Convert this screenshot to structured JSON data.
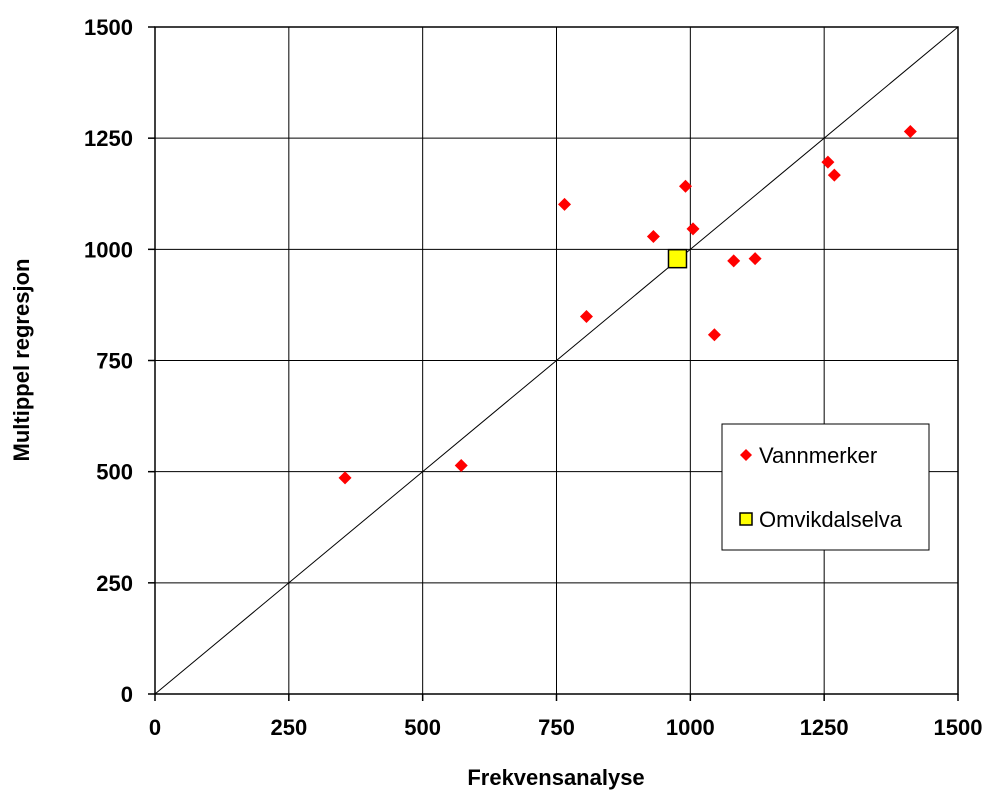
{
  "chart_data": {
    "type": "scatter",
    "xlabel": "Frekvensanalyse",
    "ylabel": "Multippel regresjon",
    "xlim": [
      0,
      1500
    ],
    "ylim": [
      0,
      1500
    ],
    "xticks": [
      "0",
      "250",
      "500",
      "750",
      "1000",
      "1250",
      "1500"
    ],
    "yticks": [
      "0",
      "250",
      "500",
      "750",
      "1000",
      "1250",
      "1500"
    ],
    "grid": true,
    "reference_line": {
      "from": [
        0,
        0
      ],
      "to": [
        1500,
        1500
      ]
    },
    "legend_position": "lower-right",
    "series": [
      {
        "name": "Vannmerker",
        "marker": "diamond",
        "color": "#ff0000",
        "points": [
          [
            355,
            486
          ],
          [
            572,
            514
          ],
          [
            765,
            1101
          ],
          [
            806,
            849
          ],
          [
            931,
            1029
          ],
          [
            991,
            1142
          ],
          [
            1005,
            1046
          ],
          [
            1045,
            808
          ],
          [
            1081,
            974
          ],
          [
            1121,
            979
          ],
          [
            1257,
            1196
          ],
          [
            1269,
            1167
          ],
          [
            1411,
            1265
          ]
        ]
      },
      {
        "name": "Omvikdalselva",
        "marker": "square",
        "color": "#ffff00",
        "points": [
          [
            976,
            979
          ]
        ]
      }
    ]
  }
}
